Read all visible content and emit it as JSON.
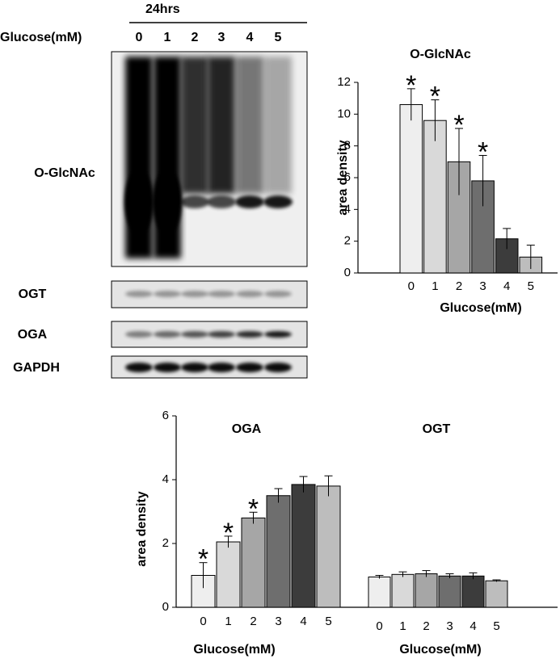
{
  "blot": {
    "header": "24hrs",
    "lane_axis": "Glucose(mM)",
    "lanes": [
      "0",
      "1",
      "2",
      "3",
      "4",
      "5"
    ],
    "rows": [
      "O-GlcNAc",
      "OGT",
      "OGA",
      "GAPDH"
    ]
  },
  "chart_data": [
    {
      "type": "bar",
      "title": "O-GlcNAc",
      "y_label": "area density",
      "x_label": "Glucose(mM)",
      "categories": [
        "0",
        "1",
        "2",
        "3",
        "4",
        "5"
      ],
      "values": [
        10.6,
        9.6,
        7.0,
        5.8,
        2.15,
        1.0
      ],
      "errors": [
        1.0,
        1.3,
        2.1,
        1.6,
        0.65,
        0.75
      ],
      "colors": [
        "#eeeeee",
        "#d9d9d9",
        "#a6a6a6",
        "#6e6e6e",
        "#3c3c3c",
        "#bdbdbd"
      ],
      "annotations": [
        {
          "text": "*",
          "category": "0"
        },
        {
          "text": "*",
          "category": "1"
        },
        {
          "text": "*",
          "category": "2"
        },
        {
          "text": "*",
          "category": "3"
        }
      ],
      "ylim": [
        0,
        12
      ],
      "yticks": [
        0,
        2,
        4,
        6,
        8,
        10,
        12
      ]
    },
    {
      "type": "bar",
      "title": "OGA",
      "y_label": "area density",
      "x_label": "Glucose(mM)",
      "categories": [
        "0",
        "1",
        "2",
        "3",
        "4",
        "5"
      ],
      "values": [
        1.0,
        2.05,
        2.8,
        3.5,
        3.85,
        3.8
      ],
      "errors": [
        0.4,
        0.18,
        0.18,
        0.22,
        0.25,
        0.32
      ],
      "colors": [
        "#eeeeee",
        "#d9d9d9",
        "#a6a6a6",
        "#6e6e6e",
        "#3c3c3c",
        "#bdbdbd"
      ],
      "annotations": [
        {
          "text": "*",
          "category": "0"
        },
        {
          "text": "*",
          "category": "1"
        },
        {
          "text": "*",
          "category": "2"
        }
      ],
      "ylim": [
        0,
        6
      ],
      "yticks": [
        0,
        2,
        4,
        6
      ]
    },
    {
      "type": "bar",
      "title": "OGT",
      "x_label": "Glucose(mM)",
      "categories": [
        "0",
        "1",
        "2",
        "3",
        "4",
        "5"
      ],
      "values": [
        0.95,
        1.03,
        1.05,
        0.98,
        0.98,
        0.83
      ],
      "errors": [
        0.05,
        0.08,
        0.1,
        0.07,
        0.1,
        0.03
      ],
      "colors": [
        "#eeeeee",
        "#d9d9d9",
        "#a6a6a6",
        "#6e6e6e",
        "#3c3c3c",
        "#bdbdbd"
      ]
    }
  ]
}
